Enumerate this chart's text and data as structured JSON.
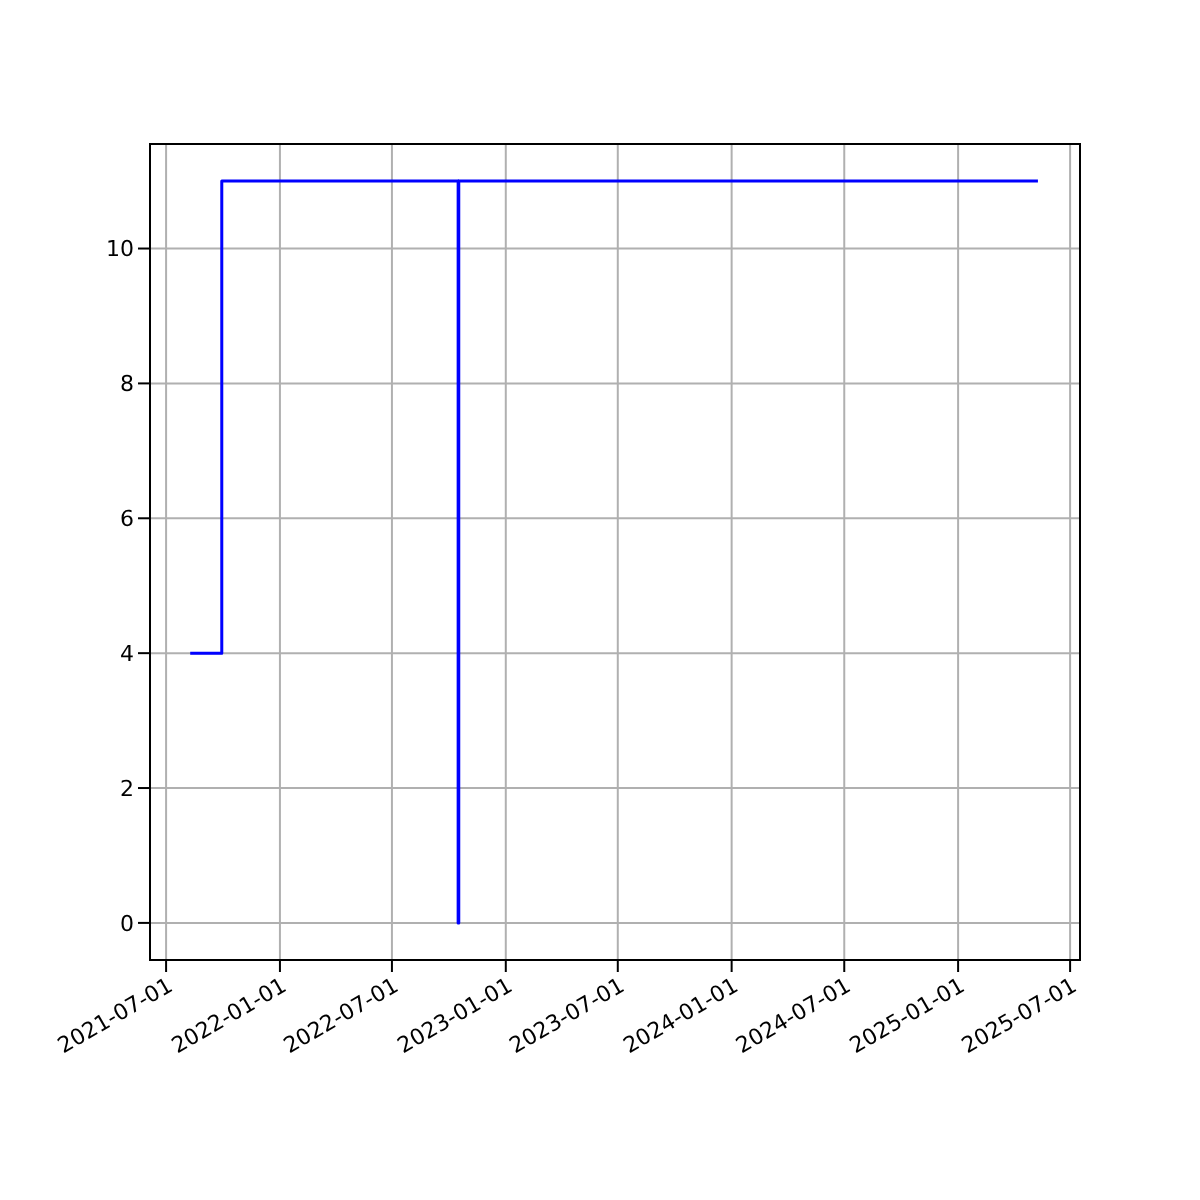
{
  "chart_data": {
    "type": "step",
    "x": [
      "2021-08-09",
      "2021-09-29",
      "2022-10-16",
      "2022-10-17",
      "2025-05-10"
    ],
    "series": [
      {
        "color": "#0000ff",
        "values": [
          4,
          11,
          0,
          11,
          11
        ]
      }
    ],
    "xlim": [
      "2021-06-05",
      "2025-07-17"
    ],
    "xticks": [
      "2021-07-01",
      "2022-01-01",
      "2022-07-01",
      "2023-01-01",
      "2023-07-01",
      "2024-01-01",
      "2024-07-01",
      "2025-01-01",
      "2025-07-01"
    ],
    "ylim": [
      -0.55,
      11.55
    ],
    "yticks": [
      0,
      2,
      4,
      6,
      8,
      10
    ],
    "grid": true,
    "marker": "none",
    "line_style": "solid"
  }
}
